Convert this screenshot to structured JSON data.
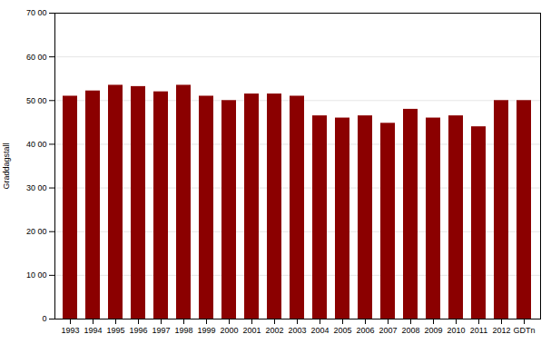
{
  "chart_data": {
    "type": "bar",
    "categories": [
      "1993",
      "1994",
      "1995",
      "1996",
      "1997",
      "1998",
      "1999",
      "2000",
      "2001",
      "2002",
      "2003",
      "2004",
      "2005",
      "2006",
      "2007",
      "2008",
      "2009",
      "2010",
      "2011",
      "2012",
      "GDTn"
    ],
    "values": [
      51.0,
      52.2,
      53.5,
      53.2,
      52.0,
      53.5,
      51.0,
      50.0,
      51.5,
      51.5,
      51.0,
      46.5,
      46.0,
      46.5,
      44.8,
      48.0,
      46.0,
      46.5,
      44.0,
      50.0,
      50.0
    ],
    "color": "#8B0000",
    "ylabel": "Graddagstall",
    "ylim": [
      0,
      70
    ],
    "yticks": [
      0,
      {
        "value": 10,
        "label": "10 00"
      },
      {
        "value": 20,
        "label": "20 00"
      },
      {
        "value": 30,
        "label": "30 00"
      },
      {
        "value": 40,
        "label": "40 00"
      },
      {
        "value": 50,
        "label": "50 00"
      },
      {
        "value": 60,
        "label": "60 00"
      },
      {
        "value": 70,
        "label": "70 00"
      }
    ],
    "grid": true
  }
}
